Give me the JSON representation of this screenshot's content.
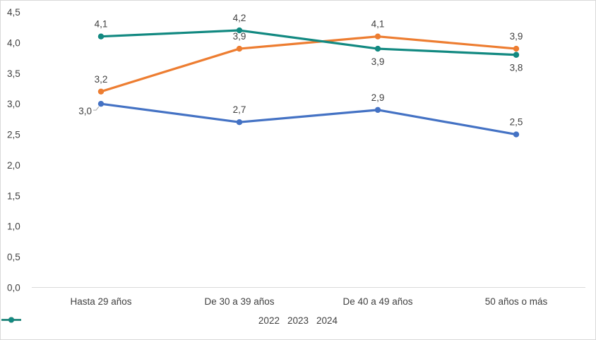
{
  "chart_data": {
    "type": "line",
    "categories": [
      "Hasta 29 años",
      "De 30 a 39 años",
      "De 40 a 49 años",
      "50 años o más"
    ],
    "series": [
      {
        "name": "2022",
        "color": "#4472C4",
        "values": [
          3.0,
          2.7,
          2.9,
          2.5
        ],
        "value_labels": [
          "3,0",
          "2,7",
          "2,9",
          "2,5"
        ],
        "label_positions": [
          "left",
          "above",
          "above",
          "above"
        ]
      },
      {
        "name": "2023",
        "color": "#ED7D31",
        "values": [
          3.2,
          3.9,
          4.1,
          3.9
        ],
        "value_labels": [
          "3,2",
          "3,9",
          "4,1",
          "3,9"
        ],
        "label_positions": [
          "above",
          "above",
          "above",
          "above"
        ]
      },
      {
        "name": "2024",
        "color": "#128981",
        "values": [
          4.1,
          4.2,
          3.9,
          3.8
        ],
        "value_labels": [
          "4,1",
          "4,2",
          "3,9",
          "3,8"
        ],
        "label_positions": [
          "above",
          "above",
          "below",
          "below"
        ]
      }
    ],
    "y_axis": {
      "min": 0,
      "max": 4.5,
      "step": 0.5,
      "tick_labels": [
        "0,0",
        "0,5",
        "1,0",
        "1,5",
        "2,0",
        "2,5",
        "3,0",
        "3,5",
        "4,0",
        "4,5"
      ]
    },
    "grid": false,
    "legend": {
      "position": "bottom",
      "entries": [
        "2022",
        "2023",
        "2024"
      ]
    },
    "colors": {
      "axis_line": "#d9d9d9",
      "frame_border": "#d9d9d9",
      "text": "#404040",
      "data_label_text": "#404040",
      "leader_line": "#a6a6a6"
    }
  }
}
